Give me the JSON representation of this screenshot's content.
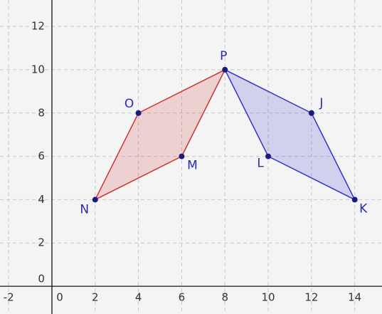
{
  "chart_data": {
    "type": "polygon",
    "xlim": [
      -2.4,
      15.26
    ],
    "ylim": [
      -1.28,
      13.22
    ],
    "xticks": [
      -2,
      0,
      2,
      4,
      6,
      8,
      10,
      12,
      14
    ],
    "yticks": [
      0,
      2,
      4,
      6,
      8,
      10,
      12
    ],
    "grid": true,
    "series": [
      {
        "color": "#cc3333",
        "labels": [
          "N",
          "O",
          "P",
          "M"
        ],
        "x": [
          2,
          4,
          8,
          6
        ],
        "values": [
          4,
          8,
          10,
          6
        ]
      },
      {
        "color": "#3333cc",
        "labels": [
          "J",
          "K",
          "L"
        ],
        "x": [
          12,
          14,
          10
        ],
        "values": [
          8,
          4,
          6
        ]
      }
    ]
  }
}
